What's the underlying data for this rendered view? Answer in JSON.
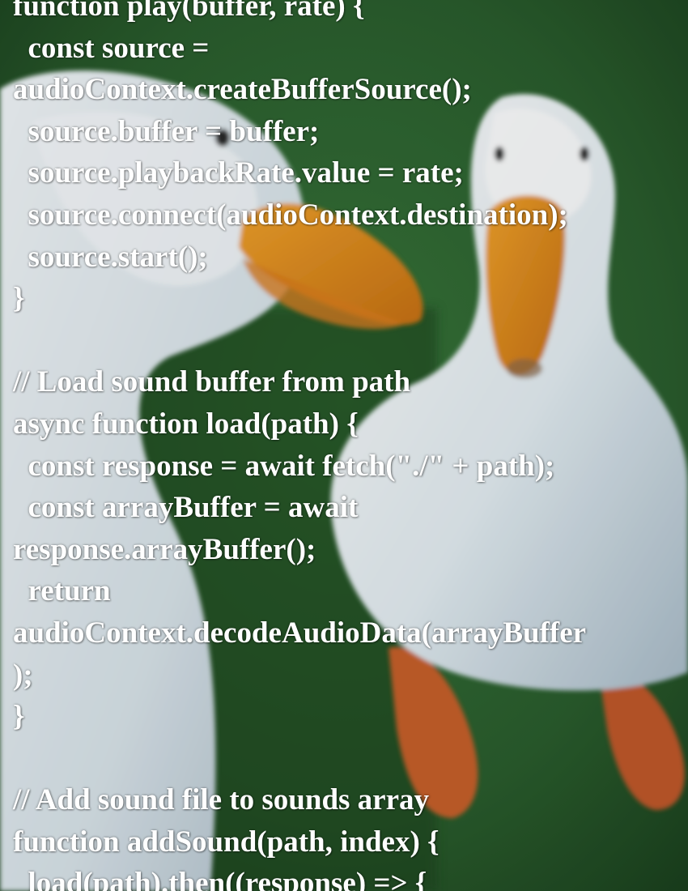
{
  "code_lines": [
    "function play(buffer, rate) {",
    "  const source =",
    "audioContext.createBufferSource();",
    "  source.buffer = buffer;",
    "  source.playbackRate.value = rate;",
    "  source.connect(audioContext.destination);",
    "  source.start();",
    "}",
    "",
    "// Load sound buffer from path",
    "async function load(path) {",
    "  const response = await fetch(\"./\" + path);",
    "  const arrayBuffer = await",
    "response.arrayBuffer();",
    "  return",
    "audioContext.decodeAudioData(arrayBuffer",
    ");",
    "}",
    "",
    "// Add sound file to sounds array",
    "function addSound(path, index) {",
    "  load(path).then((response) => {"
  ],
  "colors": {
    "grass_dark": "#1f4a22",
    "grass_mid": "#2f6a30",
    "duck_white": "#e9f1f5",
    "duck_shadow": "#9fb2c0",
    "beak_orange": "#e8941e",
    "feet_orange": "#c9602c",
    "text": "#ffffff"
  },
  "background_image": {
    "subject-icon": "two-white-ducks-on-grass"
  }
}
